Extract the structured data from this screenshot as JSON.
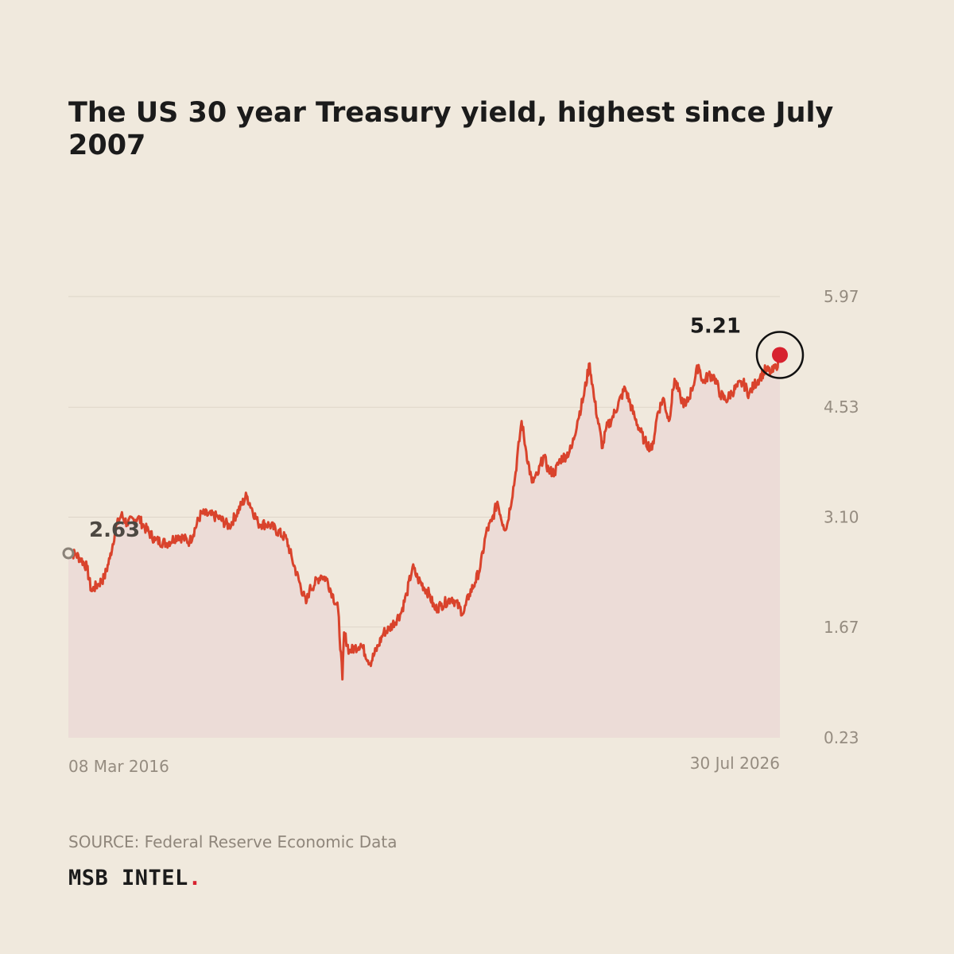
{
  "chart_data": {
    "type": "area",
    "title": "The US 30 year Treasury yield, highest since July 2007",
    "x_labels": [
      "08 Mar 2016",
      "30 Jul 2026"
    ],
    "x_range": [
      "2016-03-08",
      "2026-07-30"
    ],
    "ylim": [
      0.23,
      5.97
    ],
    "y_ticks": [
      "0.23",
      "1.67",
      "3.10",
      "4.53",
      "5.97"
    ],
    "y_tick_values": [
      0.23,
      1.67,
      3.1,
      4.53,
      5.97
    ],
    "grid": true,
    "start_value": 2.63,
    "start_label": "2.63",
    "end_value": 5.21,
    "end_label": "5.21",
    "line_color": "#d9432c",
    "fill_color": "#ecdcd7",
    "highlight_color": "#d7222f",
    "series": [
      {
        "x": [
          "2016-03-08",
          "2016-04-15",
          "2016-05-15",
          "2016-06-15",
          "2016-07-08",
          "2016-08-15",
          "2016-09-15",
          "2016-10-15",
          "2016-11-15",
          "2016-12-15",
          "2017-01-15",
          "2017-03-15",
          "2017-04-15",
          "2017-06-15",
          "2017-08-15",
          "2017-10-15",
          "2017-12-15",
          "2018-02-15",
          "2018-05-15",
          "2018-07-15",
          "2018-10-15",
          "2018-12-15",
          "2019-02-15",
          "2019-05-15",
          "2019-06-15",
          "2019-08-28",
          "2019-09-15",
          "2019-11-15",
          "2019-12-15",
          "2020-01-15",
          "2020-02-15",
          "2020-03-09",
          "2020-03-18",
          "2020-04-15",
          "2020-05-15",
          "2020-06-15",
          "2020-08-04",
          "2020-09-15",
          "2020-10-15",
          "2020-11-15",
          "2021-01-15",
          "2021-02-15",
          "2021-03-18",
          "2021-04-15",
          "2021-06-15",
          "2021-07-15",
          "2021-08-15",
          "2021-10-15",
          "2021-12-15",
          "2022-01-15",
          "2022-02-15",
          "2022-03-15",
          "2022-04-15",
          "2022-05-15",
          "2022-06-14",
          "2022-07-15",
          "2022-08-01",
          "2022-09-15",
          "2022-10-21",
          "2022-11-15",
          "2022-12-15",
          "2023-01-15",
          "2023-02-15",
          "2023-03-15",
          "2023-04-15",
          "2023-05-15",
          "2023-06-15",
          "2023-07-15",
          "2023-08-15",
          "2023-09-15",
          "2023-10-19",
          "2023-11-15",
          "2023-12-27",
          "2024-01-15",
          "2024-02-15",
          "2024-04-25",
          "2024-06-15",
          "2024-08-05",
          "2024-09-16",
          "2024-10-15",
          "2024-11-15",
          "2024-12-15",
          "2025-01-14",
          "2025-02-15",
          "2025-03-15",
          "2025-04-15",
          "2025-05-22",
          "2025-06-15",
          "2025-07-15",
          "2025-08-15",
          "2025-09-15",
          "2025-10-15",
          "2025-11-15",
          "2025-12-15",
          "2026-01-15",
          "2026-02-15",
          "2026-03-15",
          "2026-04-15",
          "2026-05-15",
          "2026-06-15",
          "2026-07-10",
          "2026-07-30"
        ],
        "values": [
          2.63,
          2.62,
          2.55,
          2.45,
          2.14,
          2.23,
          2.31,
          2.56,
          2.95,
          3.13,
          3.02,
          3.1,
          2.98,
          2.8,
          2.76,
          2.86,
          2.78,
          3.15,
          3.1,
          2.98,
          3.38,
          3.02,
          3.0,
          2.82,
          2.55,
          1.98,
          2.15,
          2.34,
          2.3,
          2.1,
          1.9,
          0.99,
          1.6,
          1.35,
          1.4,
          1.45,
          1.2,
          1.42,
          1.6,
          1.65,
          1.85,
          2.1,
          2.45,
          2.3,
          2.1,
          1.9,
          1.95,
          2.05,
          1.85,
          2.1,
          2.25,
          2.45,
          2.9,
          3.05,
          3.3,
          3.0,
          2.95,
          3.6,
          4.35,
          3.95,
          3.55,
          3.65,
          3.9,
          3.7,
          3.68,
          3.85,
          3.9,
          4.0,
          4.35,
          4.65,
          5.1,
          4.6,
          4.0,
          4.25,
          4.38,
          4.78,
          4.4,
          4.1,
          3.98,
          4.45,
          4.65,
          4.35,
          4.9,
          4.65,
          4.55,
          4.75,
          5.08,
          4.85,
          4.95,
          4.92,
          4.7,
          4.62,
          4.72,
          4.8,
          4.85,
          4.7,
          4.82,
          4.92,
          5.02,
          4.98,
          5.05,
          5.21
        ]
      }
    ]
  },
  "source": {
    "label": "SOURCE: Federal Reserve Economic Data"
  },
  "brand": {
    "name": "MSB INTEL",
    "dot": "."
  }
}
